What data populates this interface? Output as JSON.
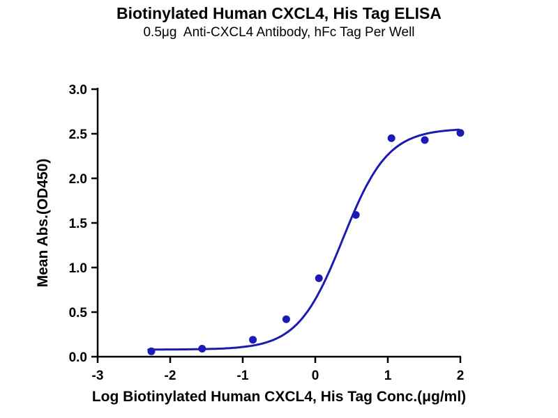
{
  "chart_data": {
    "type": "scatter",
    "title": "Biotinylated Human CXCL4, His Tag ELISA",
    "subtitle": "0.5μg  Anti-CXCL4 Antibody, hFc Tag Per Well",
    "xlabel": "Log Biotinylated Human CXCL4, His Tag Conc.(μg/ml)",
    "ylabel": "Mean Abs.(OD450)",
    "xlim": [
      -3,
      2
    ],
    "ylim": [
      0,
      3
    ],
    "x_ticks": [
      -3,
      -2,
      -1,
      0,
      1,
      2
    ],
    "x_tick_labels": [
      "-3",
      "-2",
      "-1",
      "0",
      "1",
      "2"
    ],
    "y_ticks": [
      0,
      0.5,
      1,
      1.5,
      2,
      2.5,
      3
    ],
    "y_tick_labels": [
      "0.0",
      "0.5",
      "1.0",
      "1.5",
      "2.0",
      "2.5",
      "3.0"
    ],
    "grid": false,
    "legend": "none",
    "points": [
      {
        "x": -2.26,
        "y": 0.06
      },
      {
        "x": -1.56,
        "y": 0.09
      },
      {
        "x": -0.86,
        "y": 0.19
      },
      {
        "x": -0.4,
        "y": 0.42
      },
      {
        "x": 0.05,
        "y": 0.88
      },
      {
        "x": 0.56,
        "y": 1.59
      },
      {
        "x": 1.05,
        "y": 2.45
      },
      {
        "x": 1.51,
        "y": 2.43
      },
      {
        "x": 2.0,
        "y": 2.51
      }
    ],
    "fit_curve": {
      "model": "4PL-sigmoid",
      "bottom": 0.08,
      "top": 2.56,
      "log_ec50": 0.38,
      "hill_slope": 1.4,
      "x_range": [
        -2.3,
        2.0
      ]
    },
    "colors": {
      "curve": "#1B1BB3",
      "points": "#1B1BB3",
      "axis": "#000000",
      "text": "#000000"
    }
  }
}
